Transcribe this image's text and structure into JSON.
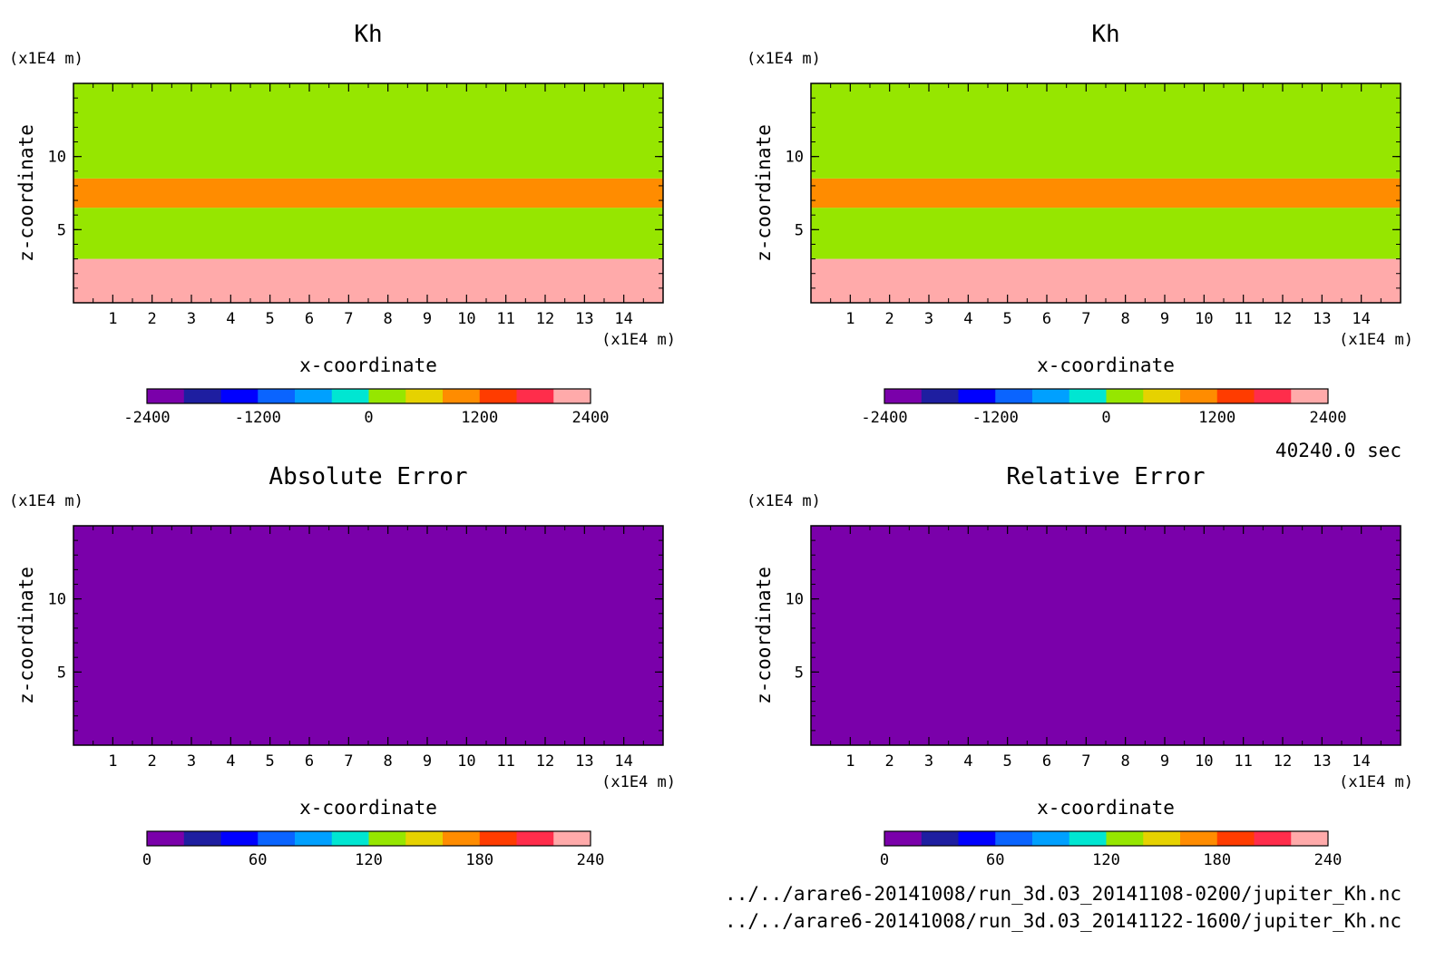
{
  "time_label": "40240.0 sec",
  "files": [
    "../../arare6-20141008/run_3d.03_20141108-0200/jupiter_Kh.nc",
    "../../arare6-20141008/run_3d.03_20141122-1600/jupiter_Kh.nc"
  ],
  "palette": [
    "#7a00aa",
    "#1e1ea0",
    "#0000ff",
    "#0a64ff",
    "#00a0ff",
    "#00e6d2",
    "#96e600",
    "#e6d200",
    "#ff8c00",
    "#ff3c00",
    "#ff2d4b",
    "#ffaaaa"
  ],
  "chart_data": [
    {
      "type": "heatmap",
      "title": "Kh",
      "xlabel": "x-coordinate",
      "ylabel": "z-coordinate",
      "x_unit": "(x1E4 m)",
      "y_unit": "(x1E4 m)",
      "xlim": [
        0,
        15
      ],
      "ylim": [
        0,
        15
      ],
      "x_ticks": [
        "1",
        "2",
        "3",
        "4",
        "5",
        "6",
        "7",
        "8",
        "9",
        "10",
        "11",
        "12",
        "13",
        "14"
      ],
      "y_ticks": [
        "5",
        "10"
      ],
      "colorbar": {
        "ticks": [
          "-2400",
          "-1200",
          "0",
          "1200",
          "2400"
        ],
        "range": [
          -2400,
          2400
        ],
        "levels": 12
      },
      "bands": [
        {
          "z": [
            0,
            3
          ],
          "level": 11
        },
        {
          "z": [
            3,
            6.5
          ],
          "level": 6
        },
        {
          "z": [
            6.5,
            8.5
          ],
          "level": 8
        },
        {
          "z": [
            8.5,
            15
          ],
          "level": 6
        }
      ]
    },
    {
      "type": "heatmap",
      "title": "Kh",
      "xlabel": "x-coordinate",
      "ylabel": "z-coordinate",
      "x_unit": "(x1E4 m)",
      "y_unit": "(x1E4 m)",
      "xlim": [
        0,
        15
      ],
      "ylim": [
        0,
        15
      ],
      "x_ticks": [
        "1",
        "2",
        "3",
        "4",
        "5",
        "6",
        "7",
        "8",
        "9",
        "10",
        "11",
        "12",
        "13",
        "14"
      ],
      "y_ticks": [
        "5",
        "10"
      ],
      "colorbar": {
        "ticks": [
          "-2400",
          "-1200",
          "0",
          "1200",
          "2400"
        ],
        "range": [
          -2400,
          2400
        ],
        "levels": 12
      },
      "bands": [
        {
          "z": [
            0,
            3
          ],
          "level": 11
        },
        {
          "z": [
            3,
            6.5
          ],
          "level": 6
        },
        {
          "z": [
            6.5,
            8.5
          ],
          "level": 8
        },
        {
          "z": [
            8.5,
            15
          ],
          "level": 6
        }
      ]
    },
    {
      "type": "heatmap",
      "title": "Absolute Error",
      "xlabel": "x-coordinate",
      "ylabel": "z-coordinate",
      "x_unit": "(x1E4 m)",
      "y_unit": "(x1E4 m)",
      "xlim": [
        0,
        15
      ],
      "ylim": [
        0,
        15
      ],
      "x_ticks": [
        "1",
        "2",
        "3",
        "4",
        "5",
        "6",
        "7",
        "8",
        "9",
        "10",
        "11",
        "12",
        "13",
        "14"
      ],
      "y_ticks": [
        "5",
        "10"
      ],
      "colorbar": {
        "ticks": [
          "0",
          "60",
          "120",
          "180",
          "240"
        ],
        "range": [
          0,
          240
        ],
        "levels": 12
      },
      "bands": [
        {
          "z": [
            0,
            15
          ],
          "level": 0
        }
      ]
    },
    {
      "type": "heatmap",
      "title": "Relative Error",
      "xlabel": "x-coordinate",
      "ylabel": "z-coordinate",
      "x_unit": "(x1E4 m)",
      "y_unit": "(x1E4 m)",
      "xlim": [
        0,
        15
      ],
      "ylim": [
        0,
        15
      ],
      "x_ticks": [
        "1",
        "2",
        "3",
        "4",
        "5",
        "6",
        "7",
        "8",
        "9",
        "10",
        "11",
        "12",
        "13",
        "14"
      ],
      "y_ticks": [
        "5",
        "10"
      ],
      "colorbar": {
        "ticks": [
          "0",
          "60",
          "120",
          "180",
          "240"
        ],
        "range": [
          0,
          240
        ],
        "levels": 12
      },
      "bands": [
        {
          "z": [
            0,
            15
          ],
          "level": 0
        }
      ]
    }
  ]
}
